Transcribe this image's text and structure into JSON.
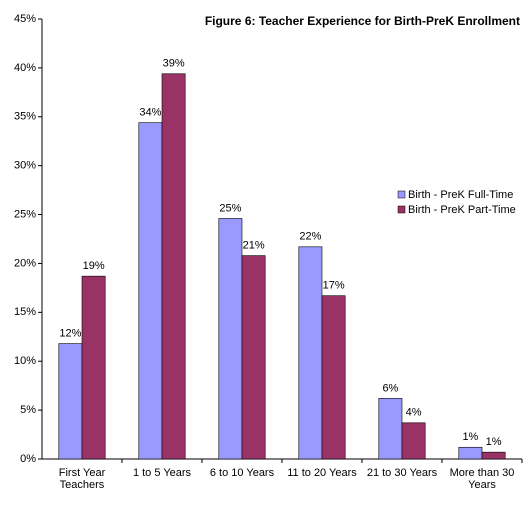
{
  "chart_data": {
    "type": "bar",
    "title": "Figure 6:  Teacher Experience for Birth-PreK Enrollment",
    "categories": [
      [
        "First Year",
        "Teachers"
      ],
      [
        "1 to 5 Years"
      ],
      [
        "6 to 10 Years"
      ],
      [
        "11 to 20 Years"
      ],
      [
        "21 to 30 Years"
      ],
      [
        "More than 30",
        "Years"
      ]
    ],
    "series": [
      {
        "name": "Birth - PreK Full-Time",
        "color": "#9999ff",
        "values": [
          11.8,
          34.4,
          24.6,
          21.7,
          6.2,
          1.2
        ],
        "value_labels": [
          "12%",
          "34%",
          "25%",
          "22%",
          "6%",
          "1%"
        ]
      },
      {
        "name": "Birth - PreK Part-Time",
        "color": "#993366",
        "values": [
          18.7,
          39.4,
          20.8,
          16.7,
          3.7,
          0.7
        ],
        "value_labels": [
          "19%",
          "39%",
          "21%",
          "17%",
          "4%",
          "1%"
        ]
      }
    ],
    "ylim": [
      0,
      45
    ],
    "yticks": [
      {
        "value": 0,
        "label": "0%"
      },
      {
        "value": 5,
        "label": "5%"
      },
      {
        "value": 10,
        "label": "10%"
      },
      {
        "value": 15,
        "label": "15%"
      },
      {
        "value": 20,
        "label": "20%"
      },
      {
        "value": 25,
        "label": "25%"
      },
      {
        "value": 30,
        "label": "30%"
      },
      {
        "value": 35,
        "label": "35%"
      },
      {
        "value": 40,
        "label": "40%"
      },
      {
        "value": 45,
        "label": "45%"
      }
    ],
    "legend": "right"
  }
}
